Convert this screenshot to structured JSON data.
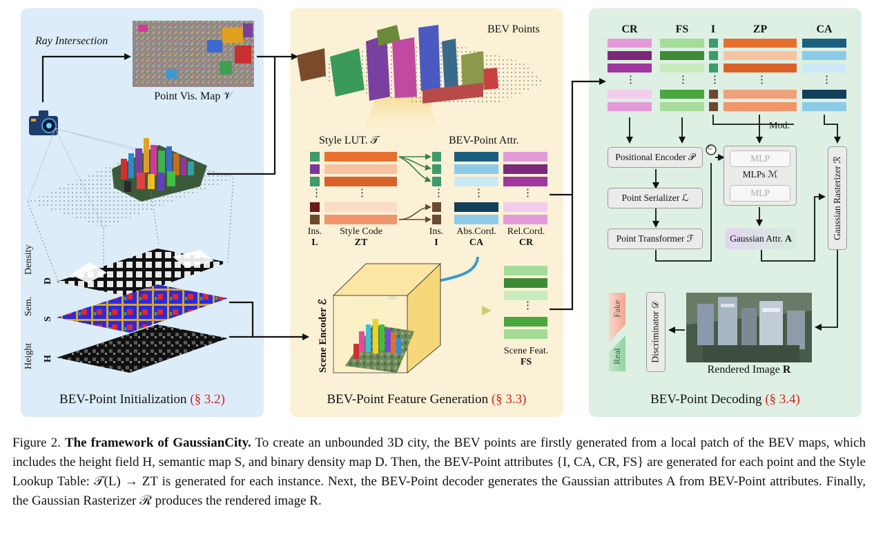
{
  "panels": {
    "init": {
      "title": "BEV-Point Initialization",
      "ref": "(§ 3.2)"
    },
    "feature": {
      "title": "BEV-Point Feature Generation",
      "ref": "(§ 3.3)"
    },
    "decoding": {
      "title": "BEV-Point Decoding",
      "ref": "(§ 3.4)"
    }
  },
  "init": {
    "ray_label": "Ray Intersection",
    "vis_map_label": "Point Vis. Map 𝒱",
    "density_label": "Density",
    "density_sym": "D",
    "sem_label": "Sem.",
    "sem_sym": "S",
    "height_label": "Height",
    "height_sym": "H"
  },
  "feature": {
    "bev_points_label": "BEV Points",
    "style_lut_label": "Style LUT. 𝒯",
    "bev_attr_label": "BEV-Point Attr.",
    "ins_label": "Ins.",
    "ins_sym_L": "L",
    "style_code_label": "Style Code",
    "style_code_sym": "ZT",
    "ins_label2": "Ins.",
    "ins_sym_I": "I",
    "abs_cord_label": "Abs.Cord.",
    "abs_cord_sym": "CA",
    "rel_cord_label": "Rel.Cord.",
    "rel_cord_sym": "CR",
    "scene_encoder_label": "Scene Encoder ℰ",
    "scene_feat_label": "Scene Feat.",
    "scene_feat_sym": "FS",
    "dots": "⋮"
  },
  "decoding": {
    "col_CR": "CR",
    "col_FS": "FS",
    "col_I": "I",
    "col_ZP": "ZP",
    "col_CA": "CA",
    "mod_label": "Mod.",
    "pos_encoder": "Positional Encoder 𝒫",
    "point_serializer": "Point Serializer ℒ",
    "point_transformer": "Point Transformer ℱ",
    "mlp1": "MLP",
    "mlp2": "MLP",
    "mlps_label": "MLPs  ℳ",
    "gaussian_attr": "Gaussian Attr.",
    "gaussian_attr_sym": "A",
    "rasterizer": "Gaussian Rasterizer ℛ",
    "discriminator": "Discriminator 𝒟",
    "fake": "Fake",
    "real": "Real",
    "rendered_label": "Rendered Image",
    "rendered_sym": "R",
    "concat": "©"
  },
  "caption": {
    "prefix": "Figure 2.",
    "title": "The framework of GaussianCity.",
    "body": "To create an unbounded 3D city, the BEV points are firstly generated from a local patch of the BEV maps, which includes the height field H, semantic map S, and binary density map D.  Then, the BEV-Point attributes {I, CA, CR, FS} are generated for each point and the Style Lookup Table: 𝒯(L) → ZT is generated for each instance. Next, the BEV-Point decoder generates the Gaussian attributes A from BEV-Point attributes. Finally, the Gaussian Rasterizer ℛ produces the rendered image R."
  },
  "colors": {
    "panel_init": "#dcecf8",
    "panel_feature": "#fbf1d6",
    "panel_decoding": "#ddf0e3",
    "ref_red": "#d42020",
    "orange_dark": "#e8702e",
    "orange_light": "#f6c3a2",
    "teal_dark": "#1b5f80",
    "sky": "#8ccbe8",
    "pink": "#e49ad8",
    "purple": "#7b2a7a",
    "green_dark": "#3e9a3e",
    "green_light": "#a5dc97",
    "brown": "#6b4a2f"
  }
}
